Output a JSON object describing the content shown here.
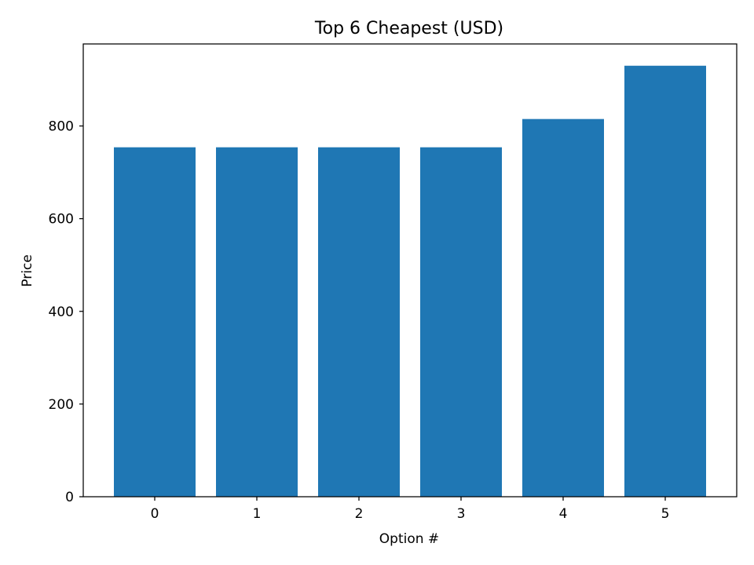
{
  "chart_data": {
    "type": "bar",
    "title": "Top 6 Cheapest (USD)",
    "xlabel": "Option #",
    "ylabel": "Price",
    "categories": [
      "0",
      "1",
      "2",
      "3",
      "4",
      "5"
    ],
    "values": [
      754,
      754,
      754,
      754,
      815,
      930
    ],
    "ylim": [
      0,
      977
    ],
    "yticks": [
      0,
      200,
      400,
      600,
      800
    ],
    "grid": false,
    "colors": {
      "bar": "#1f77b4"
    }
  }
}
